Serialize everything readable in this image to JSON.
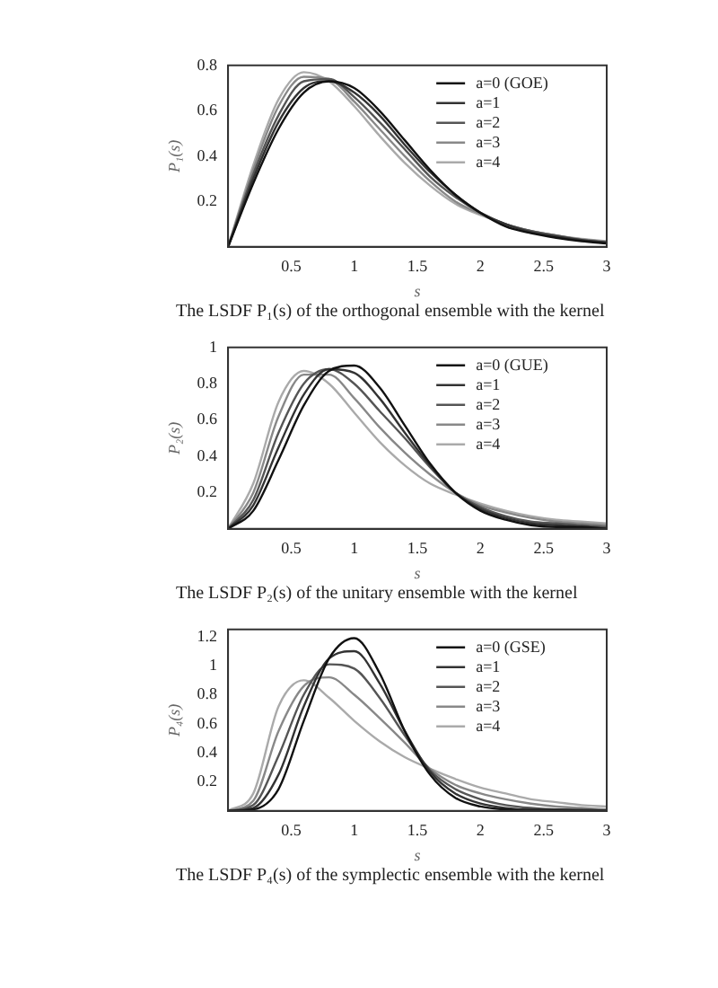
{
  "chart_data": [
    {
      "type": "line",
      "xlabel": "s",
      "ylabel": "P₁(s)",
      "annotations": [
        "The LSDF P₁(s) of the orthogonal ensemble with the kernel"
      ],
      "x": [
        0,
        0.2,
        0.4,
        0.6,
        0.8,
        1.0,
        1.2,
        1.4,
        1.6,
        1.8,
        2.0,
        2.2,
        2.4,
        2.6,
        2.8,
        3.0
      ],
      "xlim": [
        0,
        3
      ],
      "xticks": [
        0.5,
        1,
        1.5,
        2,
        2.5,
        3
      ],
      "ylim": [
        0,
        0.8
      ],
      "yticks": [
        0.2,
        0.4,
        0.6,
        0.8
      ],
      "legend": "top right",
      "marker": "none",
      "line_style": "solid",
      "series": [
        {
          "name": "a=0 (GOE)",
          "color": "#111111",
          "values": [
            0,
            0.28,
            0.52,
            0.68,
            0.73,
            0.7,
            0.6,
            0.47,
            0.34,
            0.23,
            0.15,
            0.09,
            0.06,
            0.04,
            0.025,
            0.015
          ]
        },
        {
          "name": "a=1",
          "color": "#333333",
          "values": [
            0,
            0.3,
            0.55,
            0.7,
            0.73,
            0.68,
            0.58,
            0.45,
            0.33,
            0.23,
            0.15,
            0.1,
            0.065,
            0.045,
            0.03,
            0.018
          ]
        },
        {
          "name": "a=2",
          "color": "#555555",
          "values": [
            0,
            0.32,
            0.58,
            0.73,
            0.74,
            0.66,
            0.55,
            0.43,
            0.31,
            0.22,
            0.15,
            0.1,
            0.07,
            0.05,
            0.03,
            0.02
          ]
        },
        {
          "name": "a=3",
          "color": "#888888",
          "values": [
            0,
            0.34,
            0.62,
            0.75,
            0.74,
            0.64,
            0.52,
            0.4,
            0.29,
            0.2,
            0.145,
            0.1,
            0.07,
            0.05,
            0.033,
            0.022
          ]
        },
        {
          "name": "a=4",
          "color": "#aaaaaa",
          "values": [
            0,
            0.36,
            0.65,
            0.77,
            0.73,
            0.62,
            0.49,
            0.37,
            0.27,
            0.19,
            0.14,
            0.1,
            0.07,
            0.05,
            0.035,
            0.025
          ]
        }
      ]
    },
    {
      "type": "line",
      "xlabel": "s",
      "ylabel": "P₂(s)",
      "annotations": [
        "The LSDF P₂(s) of the unitary ensemble with the kernel"
      ],
      "x": [
        0,
        0.2,
        0.4,
        0.6,
        0.8,
        1.0,
        1.2,
        1.4,
        1.6,
        1.8,
        2.0,
        2.2,
        2.4,
        2.6,
        2.8,
        3.0
      ],
      "xlim": [
        0,
        3
      ],
      "xticks": [
        0.5,
        1,
        1.5,
        2,
        2.5,
        3
      ],
      "ylim": [
        0,
        1
      ],
      "yticks": [
        0.2,
        0.4,
        0.6,
        0.8,
        1
      ],
      "legend": "top right",
      "marker": "none",
      "line_style": "solid",
      "series": [
        {
          "name": "a=0 (GUE)",
          "color": "#111111",
          "values": [
            0,
            0.1,
            0.38,
            0.68,
            0.87,
            0.9,
            0.78,
            0.57,
            0.36,
            0.2,
            0.1,
            0.05,
            0.02,
            0.01,
            0.01,
            0
          ]
        },
        {
          "name": "a=1",
          "color": "#333333",
          "values": [
            0,
            0.13,
            0.45,
            0.74,
            0.88,
            0.86,
            0.72,
            0.53,
            0.35,
            0.2,
            0.11,
            0.06,
            0.03,
            0.02,
            0.01,
            0
          ]
        },
        {
          "name": "a=2",
          "color": "#555555",
          "values": [
            0,
            0.16,
            0.53,
            0.8,
            0.88,
            0.8,
            0.65,
            0.5,
            0.34,
            0.2,
            0.12,
            0.07,
            0.04,
            0.03,
            0.02,
            0.01
          ]
        },
        {
          "name": "a=3",
          "color": "#888888",
          "values": [
            0,
            0.2,
            0.62,
            0.85,
            0.85,
            0.72,
            0.56,
            0.42,
            0.3,
            0.2,
            0.13,
            0.09,
            0.06,
            0.04,
            0.03,
            0.02
          ]
        },
        {
          "name": "a=4",
          "color": "#aaaaaa",
          "values": [
            0,
            0.25,
            0.7,
            0.87,
            0.8,
            0.64,
            0.48,
            0.35,
            0.25,
            0.19,
            0.14,
            0.1,
            0.07,
            0.05,
            0.04,
            0.03
          ]
        }
      ]
    },
    {
      "type": "line",
      "xlabel": "s",
      "ylabel": "P₄(s)",
      "annotations": [
        "The LSDF P₄(s) of the symplectic ensemble with the kernel"
      ],
      "x": [
        0,
        0.2,
        0.4,
        0.6,
        0.8,
        1.0,
        1.2,
        1.4,
        1.6,
        1.8,
        2.0,
        2.2,
        2.4,
        2.6,
        2.8,
        3.0
      ],
      "xlim": [
        0,
        3
      ],
      "xticks": [
        0.5,
        1,
        1.5,
        2,
        2.5,
        3
      ],
      "ylim": [
        0,
        1.25
      ],
      "yticks": [
        0.2,
        0.4,
        0.6,
        0.8,
        1,
        1.2
      ],
      "legend": "top right",
      "marker": "none",
      "line_style": "solid",
      "series": [
        {
          "name": "a=0 (GSE)",
          "color": "#111111",
          "values": [
            0,
            0.01,
            0.15,
            0.62,
            1.05,
            1.19,
            0.95,
            0.55,
            0.25,
            0.09,
            0.03,
            0.01,
            0,
            0,
            0,
            0
          ]
        },
        {
          "name": "a=1",
          "color": "#333333",
          "values": [
            0,
            0.02,
            0.25,
            0.72,
            1.05,
            1.1,
            0.88,
            0.55,
            0.27,
            0.12,
            0.05,
            0.02,
            0.01,
            0.01,
            0,
            0
          ]
        },
        {
          "name": "a=2",
          "color": "#555555",
          "values": [
            0,
            0.04,
            0.38,
            0.8,
            1.01,
            0.98,
            0.78,
            0.52,
            0.28,
            0.15,
            0.08,
            0.04,
            0.02,
            0.01,
            0.01,
            0
          ]
        },
        {
          "name": "a=3",
          "color": "#888888",
          "values": [
            0,
            0.07,
            0.55,
            0.86,
            0.92,
            0.8,
            0.64,
            0.47,
            0.29,
            0.18,
            0.12,
            0.08,
            0.05,
            0.03,
            0.02,
            0.01
          ]
        },
        {
          "name": "a=4",
          "color": "#aaaaaa",
          "values": [
            0,
            0.12,
            0.72,
            0.9,
            0.78,
            0.62,
            0.48,
            0.37,
            0.29,
            0.22,
            0.16,
            0.12,
            0.08,
            0.06,
            0.04,
            0.03
          ]
        }
      ]
    }
  ]
}
